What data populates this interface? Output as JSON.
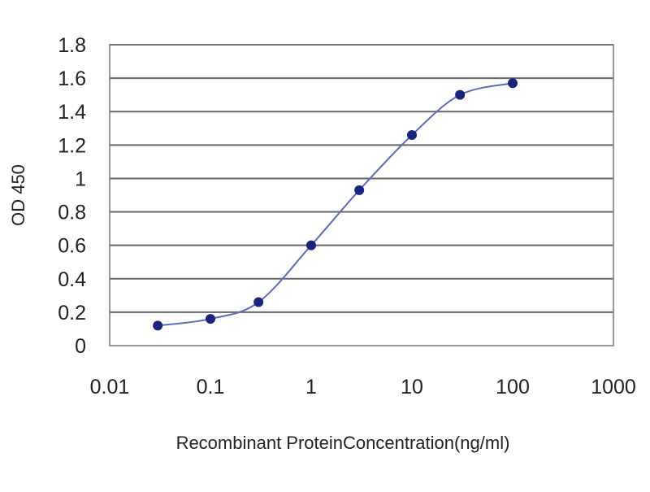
{
  "chart_data": {
    "type": "line",
    "xscale": "log",
    "title": "",
    "xlabel": "Recombinant ProteinConcentration(ng/ml)",
    "ylabel": "OD 450",
    "xlim": [
      0.01,
      1000
    ],
    "ylim": [
      0,
      1.8
    ],
    "grid": "horizontal",
    "x_ticks": [
      "0.01",
      "0.1",
      "1",
      "10",
      "100",
      "1000"
    ],
    "y_ticks": [
      "0",
      "0.2",
      "0.4",
      "0.6",
      "0.8",
      "1",
      "1.2",
      "1.4",
      "1.6",
      "1.8"
    ],
    "series": [
      {
        "x": [
          0.03,
          0.1,
          0.3,
          1,
          3,
          10,
          30,
          100
        ],
        "y": [
          0.12,
          0.16,
          0.26,
          0.6,
          0.93,
          1.26,
          1.5,
          1.57
        ],
        "color": "#1a237e",
        "line_color": "#5c6bc0"
      }
    ],
    "colors": {
      "grid": "#666666",
      "frame": "#777777"
    }
  }
}
